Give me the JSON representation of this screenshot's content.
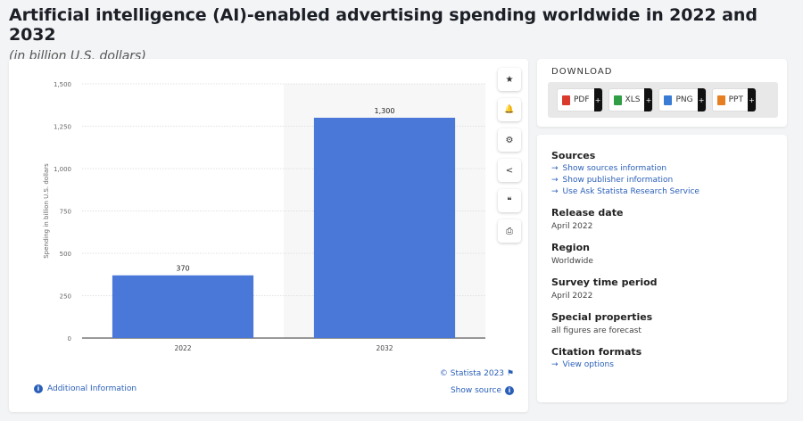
{
  "title": "Artificial intelligence (AI)-enabled advertising spending worldwide in 2022 and 2032",
  "subtitle": "(in billion U.S. dollars)",
  "chart_data": {
    "type": "bar",
    "categories": [
      "2022",
      "2032"
    ],
    "values": [
      370,
      1300
    ],
    "value_labels": [
      "370",
      "1,300"
    ],
    "ylabel": "Spending in billion U.S. dollars",
    "xlabel": "",
    "ylim": [
      0,
      1500
    ],
    "yticks": [
      0,
      250,
      500,
      750,
      1000,
      1250,
      1500
    ],
    "ytick_labels": [
      "0",
      "250",
      "500",
      "750",
      "1,000",
      "1,250",
      "1,500"
    ],
    "bar_color": "#4a78d9",
    "highlight_band_color": "#f7f7f7",
    "grid": true
  },
  "tools": [
    {
      "name": "star-icon",
      "glyph": "★"
    },
    {
      "name": "bell-icon",
      "glyph": "🔔"
    },
    {
      "name": "gear-icon",
      "glyph": "⚙"
    },
    {
      "name": "share-icon",
      "glyph": "<"
    },
    {
      "name": "quote-icon",
      "glyph": "❝"
    },
    {
      "name": "print-icon",
      "glyph": "⎙"
    }
  ],
  "footer": {
    "additional_info": "Additional Information",
    "credit": "© Statista 2023",
    "show_source": "Show source"
  },
  "download": {
    "heading": "DOWNLOAD",
    "buttons": [
      {
        "label": "PDF",
        "color": "#d93a2b"
      },
      {
        "label": "XLS",
        "color": "#2f9e44"
      },
      {
        "label": "PNG",
        "color": "#3a7bd5"
      },
      {
        "label": "PPT",
        "color": "#e67e22"
      }
    ]
  },
  "info": {
    "sources_heading": "Sources",
    "sources_links": [
      "Show sources information",
      "Show publisher information",
      "Use Ask Statista Research Service"
    ],
    "release_heading": "Release date",
    "release_value": "April 2022",
    "region_heading": "Region",
    "region_value": "Worldwide",
    "survey_heading": "Survey time period",
    "survey_value": "April 2022",
    "special_heading": "Special properties",
    "special_value": "all figures are forecast",
    "citation_heading": "Citation formats",
    "citation_link": "View options"
  }
}
